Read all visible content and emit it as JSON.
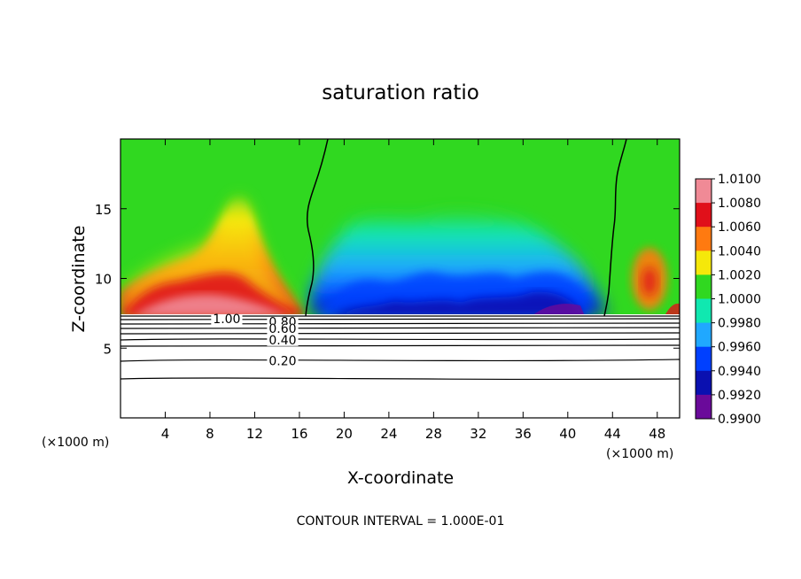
{
  "chart_data": {
    "type": "heatmap",
    "title": "saturation ratio",
    "xlabel": "X-coordinate",
    "ylabel": "Z-coordinate",
    "x_unit": "(×1000 m)",
    "x_unit_right": "(×1000 m)",
    "xlim": [
      0,
      50
    ],
    "ylim": [
      0,
      20
    ],
    "x_ticks": [
      4,
      8,
      12,
      16,
      20,
      24,
      28,
      32,
      36,
      40,
      44,
      48
    ],
    "y_ticks": [
      5,
      10,
      15
    ],
    "colorbar": {
      "levels": [
        "1.0100",
        "1.0080",
        "1.0060",
        "1.0040",
        "1.0020",
        "1.0000",
        "0.9980",
        "0.9960",
        "0.9940",
        "0.9920",
        "0.9900"
      ],
      "colors": [
        "#f08a96",
        "#e0101a",
        "#ff7a10",
        "#f5e80a",
        "#30d820",
        "#10e8b0",
        "#20a8ff",
        "#0040ff",
        "#0a10b0",
        "#6a0a9a"
      ]
    },
    "contour_labels": [
      {
        "text": "1.00",
        "x": 9.5,
        "y": 7.1
      },
      {
        "text": "0.80",
        "x": 14.5,
        "y": 6.9
      },
      {
        "text": "0.60",
        "x": 14.5,
        "y": 6.4
      },
      {
        "text": "0.40",
        "x": 14.5,
        "y": 5.6
      },
      {
        "text": "0.20",
        "x": 14.5,
        "y": 4.1
      }
    ],
    "footer": "CONTOUR INTERVAL = 1.000E-01"
  }
}
